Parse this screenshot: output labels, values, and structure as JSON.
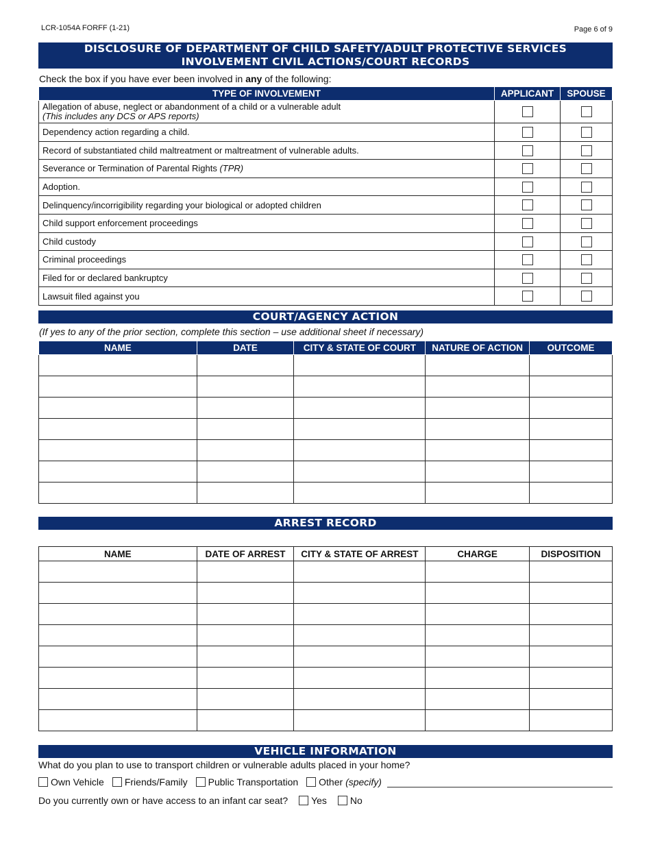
{
  "header": {
    "form_id": "LCR-1054A FORFF (1-21)",
    "page": "Page 6 of 9"
  },
  "disclosure": {
    "title_line1": "DISCLOSURE OF DEPARTMENT OF CHILD SAFETY/ADULT PROTECTIVE SERVICES",
    "title_line2": "INVOLVEMENT CIVIL ACTIONS/COURT RECORDS",
    "instruction_pre": "Check the box if you have ever been involved in ",
    "instruction_bold": "any",
    "instruction_post": " of the following:",
    "columns": [
      "TYPE OF INVOLVEMENT",
      "APPLICANT",
      "SPOUSE"
    ],
    "rows": [
      {
        "label": "Allegation of abuse, neglect or abandonment of a child or a vulnerable adult",
        "note": "(This includes any DCS or APS reports)"
      },
      {
        "label": "Dependency action regarding a child."
      },
      {
        "label": "Record of substantiated child maltreatment or maltreatment of vulnerable adults."
      },
      {
        "label": "Severance or Termination of Parental Rights ",
        "note": "(TPR)"
      },
      {
        "label": "Adoption."
      },
      {
        "label": "Delinquency/incorrigibility regarding your biological or adopted children"
      },
      {
        "label": "Child support enforcement proceedings"
      },
      {
        "label": "Child custody"
      },
      {
        "label": "Criminal proceedings"
      },
      {
        "label": "Filed for or declared bankruptcy"
      },
      {
        "label": "Lawsuit filed against you"
      }
    ]
  },
  "court": {
    "title": "COURT/AGENCY ACTION",
    "note": "(If yes to any of the prior section, complete this section – use additional sheet if necessary)",
    "columns": [
      "NAME",
      "DATE",
      "CITY & STATE OF COURT",
      "NATURE OF ACTION",
      "OUTCOME"
    ],
    "row_count": 7
  },
  "arrest": {
    "title": "ARREST RECORD",
    "columns": [
      "NAME",
      "DATE OF ARREST",
      "CITY & STATE OF ARREST",
      "CHARGE",
      "DISPOSITION"
    ],
    "row_count": 8
  },
  "vehicle": {
    "title": "VEHICLE INFORMATION",
    "question": "What do you plan to use to transport children or vulnerable adults placed in your home?",
    "options": [
      "Own Vehicle",
      "Friends/Family",
      "Public Transportation",
      "Other"
    ],
    "other_specify": "(specify)",
    "car_seat_question": "Do you currently own or have access to an infant car seat?",
    "car_seat_options": [
      "Yes",
      "No"
    ]
  }
}
